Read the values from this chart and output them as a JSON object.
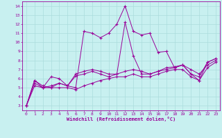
{
  "xlabel": "Windchill (Refroidissement éolien,°C)",
  "ylabel": "",
  "xlim": [
    -0.5,
    23.5
  ],
  "ylim": [
    2.5,
    14.5
  ],
  "xticks": [
    0,
    1,
    2,
    3,
    4,
    5,
    6,
    7,
    8,
    9,
    10,
    11,
    12,
    13,
    14,
    15,
    16,
    17,
    18,
    19,
    20,
    21,
    22,
    23
  ],
  "yticks": [
    3,
    4,
    5,
    6,
    7,
    8,
    9,
    10,
    11,
    12,
    13,
    14
  ],
  "background_color": "#c8f0f0",
  "line_color": "#990099",
  "grid_color": "#aadddd",
  "line1_x": [
    0,
    1,
    2,
    3,
    4,
    5,
    6,
    7,
    8,
    9,
    10,
    11,
    12,
    13,
    14,
    15,
    16,
    17,
    18,
    19,
    20,
    21,
    22,
    23
  ],
  "line1_y": [
    3.0,
    5.8,
    5.0,
    6.2,
    6.0,
    5.2,
    5.0,
    11.2,
    11.0,
    10.5,
    11.0,
    12.0,
    14.0,
    11.2,
    10.8,
    11.0,
    8.9,
    9.0,
    7.2,
    7.5,
    6.5,
    5.8,
    7.8,
    8.2
  ],
  "line2_x": [
    0,
    1,
    2,
    3,
    4,
    5,
    6,
    7,
    8,
    9,
    10,
    11,
    12,
    13,
    14,
    15,
    16,
    17,
    18,
    19,
    20,
    21,
    22,
    23
  ],
  "line2_y": [
    3.0,
    5.8,
    5.2,
    5.0,
    5.5,
    5.2,
    6.5,
    6.8,
    7.0,
    6.8,
    6.5,
    6.5,
    12.2,
    8.5,
    6.5,
    6.5,
    6.8,
    7.0,
    7.2,
    7.5,
    6.5,
    6.2,
    7.8,
    8.2
  ],
  "line3_x": [
    0,
    1,
    2,
    3,
    4,
    5,
    6,
    7,
    8,
    9,
    10,
    11,
    12,
    13,
    14,
    15,
    16,
    17,
    18,
    19,
    20,
    21,
    22,
    23
  ],
  "line3_y": [
    3.0,
    5.5,
    5.0,
    5.2,
    5.5,
    5.2,
    6.3,
    6.5,
    6.8,
    6.5,
    6.2,
    6.5,
    6.8,
    7.0,
    6.8,
    6.5,
    6.8,
    7.2,
    7.3,
    7.5,
    7.0,
    6.5,
    7.5,
    8.0
  ],
  "line4_x": [
    0,
    1,
    2,
    3,
    4,
    5,
    6,
    7,
    8,
    9,
    10,
    11,
    12,
    13,
    14,
    15,
    16,
    17,
    18,
    19,
    20,
    21,
    22,
    23
  ],
  "line4_y": [
    3.0,
    5.2,
    5.0,
    5.0,
    5.0,
    5.0,
    4.8,
    5.2,
    5.5,
    5.8,
    6.0,
    6.2,
    6.2,
    6.5,
    6.2,
    6.2,
    6.5,
    6.8,
    7.0,
    7.0,
    6.2,
    5.8,
    7.2,
    7.8
  ]
}
